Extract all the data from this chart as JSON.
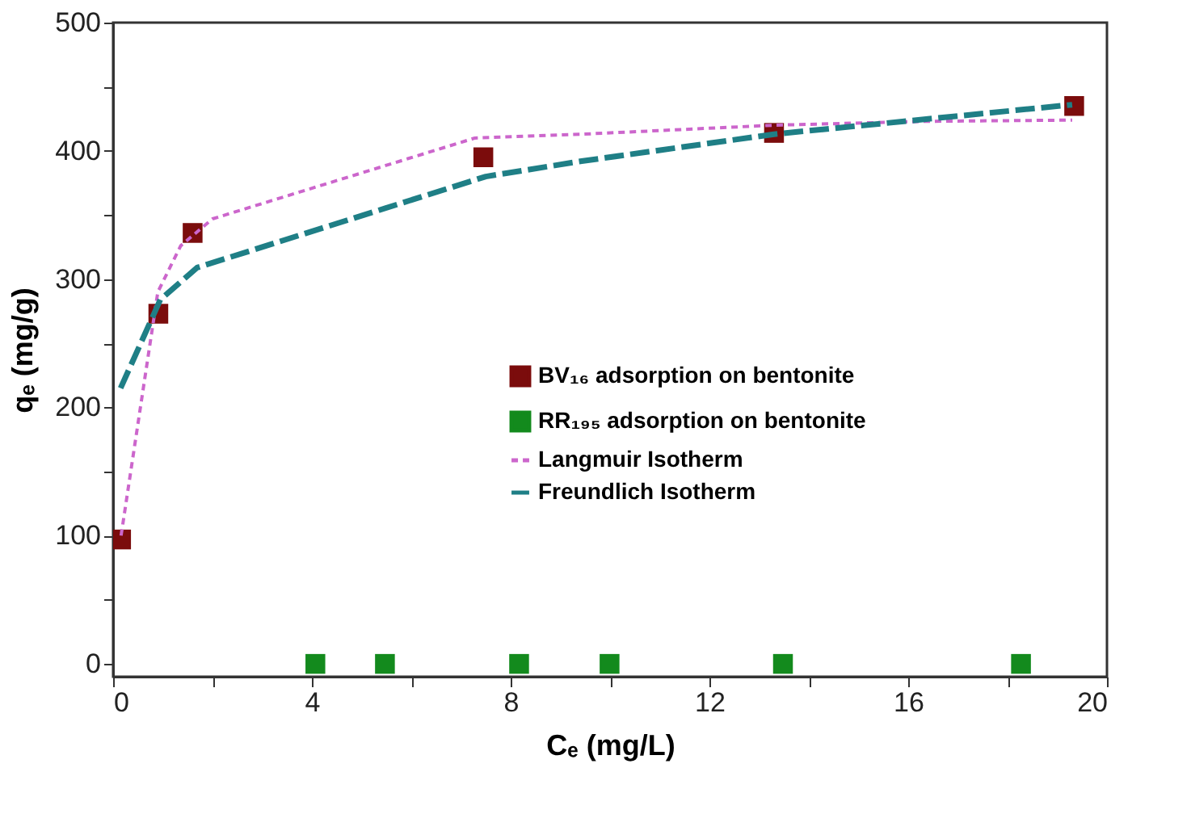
{
  "chart_data": {
    "type": "scatter",
    "xlabel": "Cₑ (mg/L)",
    "ylabel": "qₑ (mg/g)",
    "xlim": [
      0,
      20
    ],
    "ylim": [
      -10,
      500
    ],
    "xticks": [
      0,
      {
        "value": 2,
        "label": null
      },
      4,
      {
        "value": 6,
        "label": null
      },
      8,
      {
        "value": 10,
        "label": null
      },
      12,
      {
        "value": 14,
        "label": null
      },
      16,
      {
        "value": 18,
        "label": null
      },
      20
    ],
    "yticks": [
      0,
      {
        "value": 50,
        "label": null
      },
      100,
      {
        "value": 150,
        "label": null
      },
      200,
      {
        "value": 250,
        "label": null
      },
      300,
      {
        "value": 350,
        "label": null
      },
      400,
      {
        "value": 450,
        "label": null
      },
      500
    ],
    "grid": false,
    "legend": "right",
    "series": [
      {
        "name": "BV₁₆ adsorption on bentonite",
        "marker": "square",
        "color": "#7b0c0c",
        "x": [
          0.16,
          0.91,
          1.6,
          7.45,
          13.3,
          19.34
        ],
        "values": [
          97,
          273,
          336,
          395,
          414,
          435
        ]
      },
      {
        "name": "RR₁₉₅ adsorption on bentonite",
        "marker": "square",
        "color": "#138a1d",
        "x": [
          4.07,
          5.47,
          8.17,
          9.99,
          13.48,
          18.27
        ],
        "values": [
          0,
          0,
          0,
          0,
          0,
          0
        ]
      },
      {
        "name": "Langmuir Isotherm",
        "type": "line",
        "line_style": "dashed",
        "color": "#cc66cc",
        "x": [
          0.16,
          0.9,
          1.36,
          2.0,
          7.28,
          9.43,
          13.3,
          16.3,
          19.3
        ],
        "values": [
          100,
          290,
          326,
          347,
          410,
          413,
          420,
          423,
          424
        ]
      },
      {
        "name": "Freundlich Isotherm",
        "type": "line",
        "line_style": "dashed",
        "color": "#1f7f86",
        "x": [
          0.15,
          0.95,
          1.69,
          7.5,
          8.78,
          9.43,
          13.3,
          19.3
        ],
        "values": [
          215,
          284,
          309,
          380,
          388,
          392,
          413,
          436
        ]
      }
    ]
  }
}
